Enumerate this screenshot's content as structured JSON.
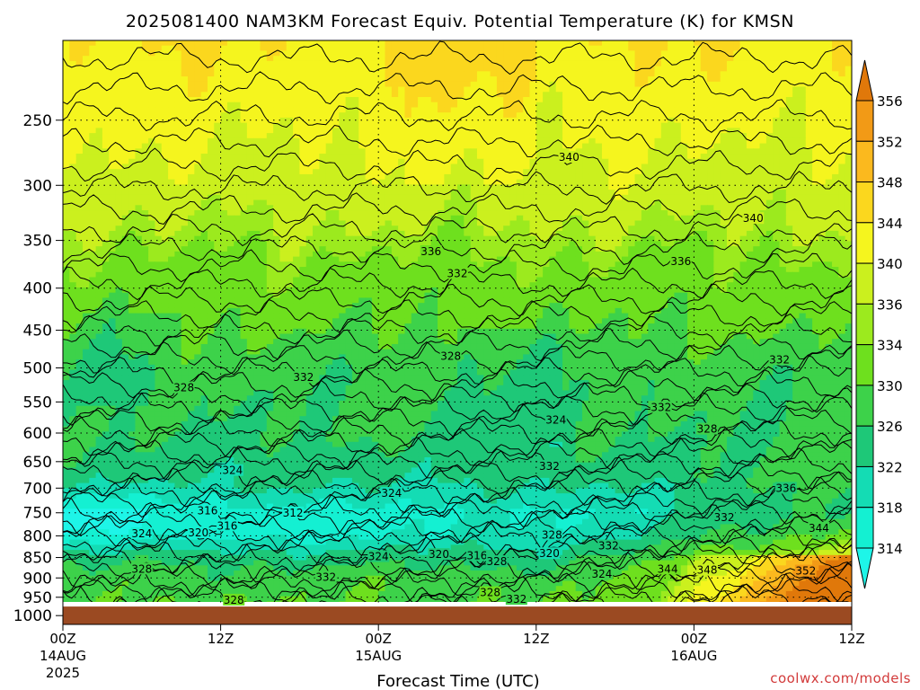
{
  "chart_data": {
    "type": "heatmap",
    "title": "2025081400 NAM3KM Forecast Equiv. Potential Temperature (K) for KMSN",
    "xlabel": "Forecast Time (UTC)",
    "ylabel": "",
    "x_ticks": [
      {
        "hour": 0,
        "label": "00Z",
        "sub1": "14AUG",
        "sub2": "2025"
      },
      {
        "hour": 12,
        "label": "12Z",
        "sub1": "",
        "sub2": ""
      },
      {
        "hour": 24,
        "label": "00Z",
        "sub1": "15AUG",
        "sub2": ""
      },
      {
        "hour": 36,
        "label": "12Z",
        "sub1": "",
        "sub2": ""
      },
      {
        "hour": 48,
        "label": "00Z",
        "sub1": "16AUG",
        "sub2": ""
      },
      {
        "hour": 60,
        "label": "12Z",
        "sub1": "",
        "sub2": ""
      }
    ],
    "xlim_hours": [
      0,
      60
    ],
    "y_ticks": [
      250,
      300,
      350,
      400,
      450,
      500,
      550,
      600,
      650,
      700,
      750,
      800,
      850,
      900,
      950,
      1000
    ],
    "ylim_hpa": [
      200,
      1025
    ],
    "y_scale": "log-pressure",
    "grid": "dotted",
    "surface_pressure_hpa": 975,
    "colorbar": {
      "labels": [
        356,
        352,
        348,
        344,
        340,
        336,
        334,
        330,
        326,
        322,
        318,
        314
      ],
      "colors": [
        "#e0780a",
        "#f29a16",
        "#fbb91e",
        "#fbd71e",
        "#f5f51e",
        "#cbf01e",
        "#9cea1e",
        "#6ee01e",
        "#3dd24a",
        "#1ec878",
        "#14dcb4",
        "#14f0d2",
        "#1ef5e8"
      ],
      "extend": "both"
    },
    "contour_labels": [
      {
        "hour": 38.5,
        "hpa": 278,
        "text": "340"
      },
      {
        "hour": 52.5,
        "hpa": 330,
        "text": "340"
      },
      {
        "hour": 28,
        "hpa": 362,
        "text": "336"
      },
      {
        "hour": 47,
        "hpa": 372,
        "text": "336"
      },
      {
        "hour": 30,
        "hpa": 385,
        "text": "332"
      },
      {
        "hour": 29.5,
        "hpa": 485,
        "text": "328"
      },
      {
        "hour": 9.2,
        "hpa": 530,
        "text": "328"
      },
      {
        "hour": 18.3,
        "hpa": 515,
        "text": "332"
      },
      {
        "hour": 54.5,
        "hpa": 490,
        "text": "332"
      },
      {
        "hour": 37.5,
        "hpa": 580,
        "text": "324"
      },
      {
        "hour": 45.5,
        "hpa": 560,
        "text": "332"
      },
      {
        "hour": 49,
        "hpa": 595,
        "text": "328"
      },
      {
        "hour": 12.9,
        "hpa": 668,
        "text": "324"
      },
      {
        "hour": 37,
        "hpa": 660,
        "text": "332"
      },
      {
        "hour": 25,
        "hpa": 712,
        "text": "324"
      },
      {
        "hour": 55,
        "hpa": 702,
        "text": "336"
      },
      {
        "hour": 11,
        "hpa": 748,
        "text": "316"
      },
      {
        "hour": 17.5,
        "hpa": 752,
        "text": "312"
      },
      {
        "hour": 12.5,
        "hpa": 780,
        "text": "316"
      },
      {
        "hour": 10.3,
        "hpa": 795,
        "text": "320"
      },
      {
        "hour": 6,
        "hpa": 797,
        "text": "324"
      },
      {
        "hour": 50.3,
        "hpa": 762,
        "text": "332"
      },
      {
        "hour": 57.5,
        "hpa": 785,
        "text": "344"
      },
      {
        "hour": 37.2,
        "hpa": 800,
        "text": "328"
      },
      {
        "hour": 41.5,
        "hpa": 825,
        "text": "332"
      },
      {
        "hour": 24,
        "hpa": 850,
        "text": "324"
      },
      {
        "hour": 28.6,
        "hpa": 845,
        "text": "320"
      },
      {
        "hour": 31.5,
        "hpa": 848,
        "text": "316"
      },
      {
        "hour": 37,
        "hpa": 843,
        "text": "320"
      },
      {
        "hour": 33,
        "hpa": 862,
        "text": "328"
      },
      {
        "hour": 6,
        "hpa": 880,
        "text": "328"
      },
      {
        "hour": 20,
        "hpa": 900,
        "text": "332"
      },
      {
        "hour": 41,
        "hpa": 893,
        "text": "324"
      },
      {
        "hour": 46,
        "hpa": 880,
        "text": "344"
      },
      {
        "hour": 49,
        "hpa": 883,
        "text": "348"
      },
      {
        "hour": 56.5,
        "hpa": 885,
        "text": "352"
      },
      {
        "hour": 32.5,
        "hpa": 940,
        "text": "328"
      },
      {
        "hour": 34.5,
        "hpa": 958,
        "text": "332"
      },
      {
        "hour": 13,
        "hpa": 960,
        "text": "328"
      }
    ],
    "field_profile": [
      {
        "hpa": 200,
        "k": 344
      },
      {
        "hpa": 230,
        "k": 342
      },
      {
        "hpa": 270,
        "k": 340
      },
      {
        "hpa": 320,
        "k": 337
      },
      {
        "hpa": 380,
        "k": 333
      },
      {
        "hpa": 450,
        "k": 330
      },
      {
        "hpa": 520,
        "k": 327
      },
      {
        "hpa": 600,
        "k": 326
      },
      {
        "hpa": 680,
        "k": 323
      },
      {
        "hpa": 750,
        "k": 318
      },
      {
        "hpa": 800,
        "k": 320
      },
      {
        "hpa": 850,
        "k": 325
      },
      {
        "hpa": 900,
        "k": 328
      },
      {
        "hpa": 975,
        "k": 330
      }
    ]
  },
  "credit": "coolwx.com/models"
}
